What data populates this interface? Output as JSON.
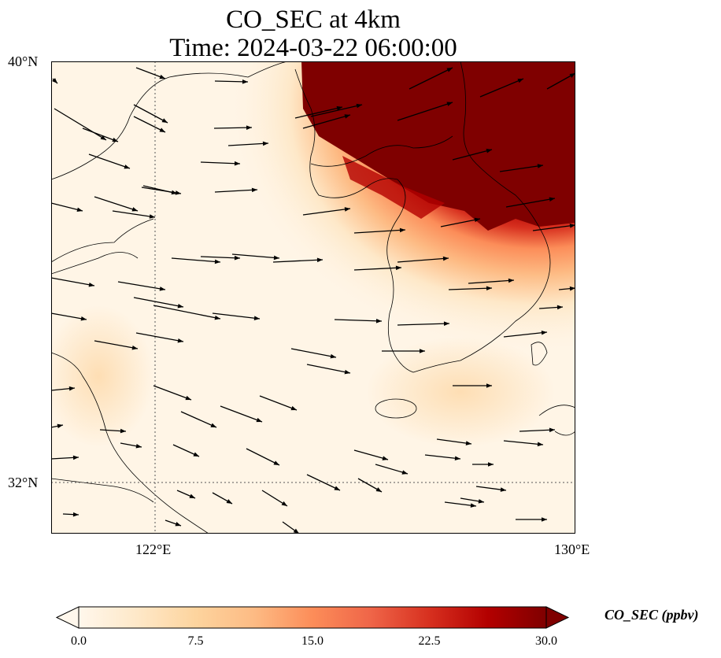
{
  "title": {
    "line1": "CO_SEC at 4km",
    "line2": "Time: 2024-03-22 06:00:00"
  },
  "axes": {
    "lat_ticks": [
      {
        "label": "40°N"
      },
      {
        "label": "32°N"
      }
    ],
    "lon_ticks": [
      {
        "label": "122°E"
      },
      {
        "label": "130°E"
      }
    ]
  },
  "colorbar": {
    "label": "CO_SEC (ppbv)",
    "ticks": [
      "0.0",
      "7.5",
      "15.0",
      "22.5",
      "30.0"
    ],
    "min": 0,
    "max": 30,
    "extend": "both",
    "colormap": "OrRd",
    "colors": [
      "#fff7ec",
      "#fee8c8",
      "#fdd49e",
      "#fdbb84",
      "#fc8d59",
      "#ef6548",
      "#d7301f",
      "#b30000",
      "#7f0000"
    ]
  },
  "map": {
    "extent_lon": [
      120,
      130
    ],
    "extent_lat": [
      31,
      40
    ],
    "gridlines": "dotted",
    "plume_location": "northeast (high concentration over northern Korean peninsula)",
    "features": [
      "coastlines",
      "wind vectors"
    ]
  }
}
